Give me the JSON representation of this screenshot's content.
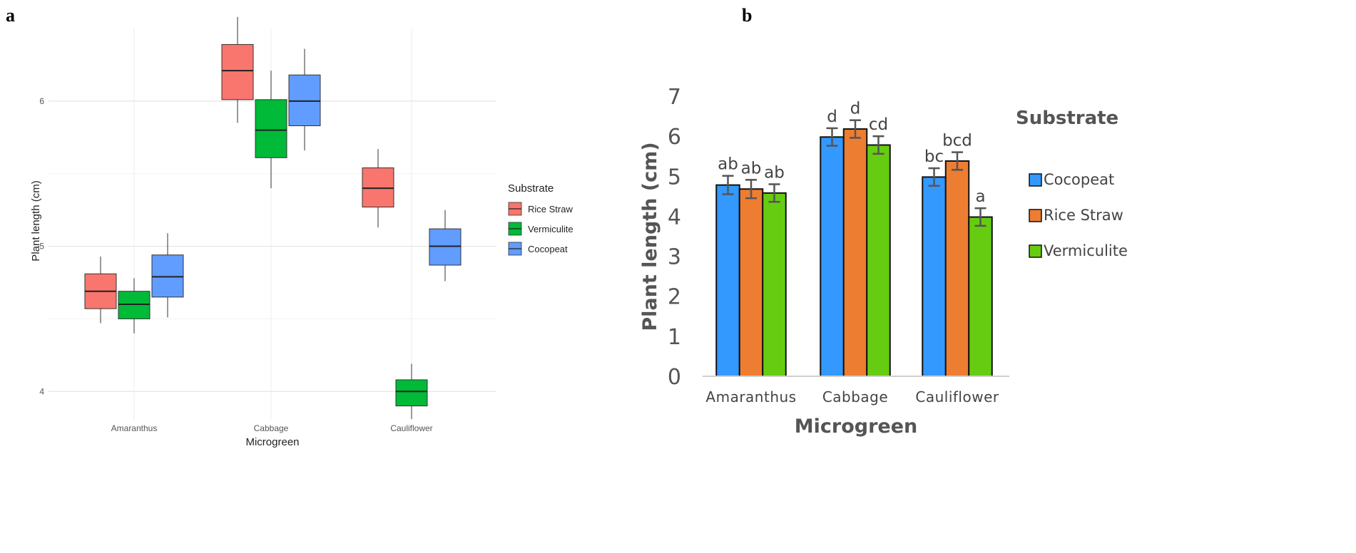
{
  "panel_labels": {
    "a": "a",
    "b": "b"
  },
  "chart_data": [
    {
      "panel": "a",
      "type": "box",
      "title": "",
      "xlabel": "Microgreen",
      "ylabel": "Plant length (cm)",
      "ylim": [
        3.8,
        6.5
      ],
      "yticks": [
        "4",
        "5",
        "6"
      ],
      "categories": [
        "Amaranthus",
        "Cabbage",
        "Cauliflower"
      ],
      "legend_title": "Substrate",
      "legend_position": "right",
      "series": [
        {
          "name": "Rice Straw",
          "color": "#F8766D",
          "boxes": [
            {
              "min": 4.47,
              "q1": 4.57,
              "median": 4.69,
              "q3": 4.81,
              "max": 4.93
            },
            {
              "min": 5.85,
              "q1": 6.01,
              "median": 6.21,
              "q3": 6.39,
              "max": 6.58
            },
            {
              "min": 5.13,
              "q1": 5.27,
              "median": 5.4,
              "q3": 5.54,
              "max": 5.67
            }
          ]
        },
        {
          "name": "Vermiculite",
          "color": "#00BA38",
          "boxes": [
            {
              "min": 4.4,
              "q1": 4.5,
              "median": 4.6,
              "q3": 4.69,
              "max": 4.78
            },
            {
              "min": 5.4,
              "q1": 5.61,
              "median": 5.8,
              "q3": 6.01,
              "max": 6.21
            },
            {
              "min": 3.81,
              "q1": 3.9,
              "median": 4.0,
              "q3": 4.08,
              "max": 4.19
            }
          ]
        },
        {
          "name": "Cocopeat",
          "color": "#619CFF",
          "boxes": [
            {
              "min": 4.51,
              "q1": 4.65,
              "median": 4.79,
              "q3": 4.94,
              "max": 5.09
            },
            {
              "min": 5.66,
              "q1": 5.83,
              "median": 6.0,
              "q3": 6.18,
              "max": 6.36
            },
            {
              "min": 4.76,
              "q1": 4.87,
              "median": 5.0,
              "q3": 5.12,
              "max": 5.25
            }
          ]
        }
      ]
    },
    {
      "panel": "b",
      "type": "bar",
      "title": "",
      "xlabel": "Microgreen",
      "ylabel": "Plant length (cm)",
      "ylim": [
        0,
        7
      ],
      "yticks": [
        "0",
        "1",
        "2",
        "3",
        "4",
        "5",
        "6",
        "7"
      ],
      "categories": [
        "Amaranthus",
        "Cabbage",
        "Cauliflower"
      ],
      "legend_title": "Substrate",
      "legend_position": "right",
      "series": [
        {
          "name": "Cocopeat",
          "color": "#3399FF",
          "values": [
            4.78,
            5.98,
            4.98
          ],
          "errors": [
            0.23,
            0.22,
            0.22
          ],
          "labels": [
            "ab",
            "d",
            "bc"
          ]
        },
        {
          "name": "Rice Straw",
          "color": "#ED7D31",
          "values": [
            4.68,
            6.18,
            5.38
          ],
          "errors": [
            0.23,
            0.22,
            0.22
          ],
          "labels": [
            "ab",
            "d",
            "bcd"
          ]
        },
        {
          "name": "Vermiculite",
          "color": "#66CC11",
          "values": [
            4.58,
            5.78,
            3.98
          ],
          "errors": [
            0.22,
            0.22,
            0.22
          ],
          "labels": [
            "ab",
            "cd",
            "a"
          ]
        }
      ]
    }
  ]
}
